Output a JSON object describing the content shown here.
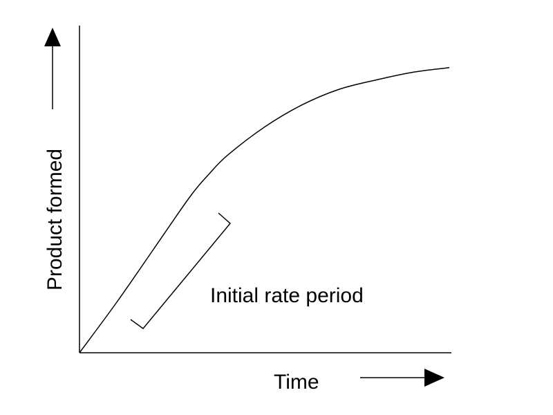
{
  "chart_data": {
    "type": "line",
    "title": "",
    "xlabel": "Time",
    "ylabel": "Product formed",
    "xlim": [
      0,
      100
    ],
    "ylim": [
      0,
      100
    ],
    "grid": false,
    "legend": "none",
    "annotation": "Initial rate period",
    "series": [
      {
        "x": [
          0,
          10,
          20,
          30,
          35,
          40,
          50,
          60,
          70,
          80,
          90,
          100
        ],
        "values": [
          0,
          16,
          33,
          50,
          57,
          63,
          72,
          79,
          84,
          87,
          89.5,
          91
        ]
      }
    ]
  },
  "colors": {
    "line": "#000000",
    "background": "#ffffff"
  }
}
